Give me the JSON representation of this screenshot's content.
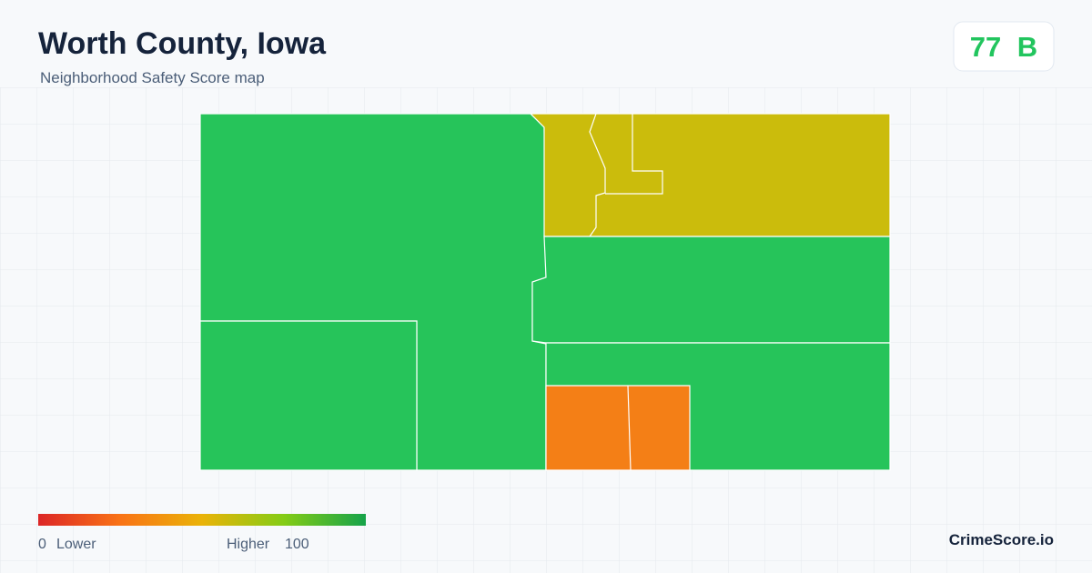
{
  "header": {
    "title": "Worth County, Iowa",
    "subtitle": "Neighborhood Safety Score map"
  },
  "score": {
    "value": 77,
    "grade": "B"
  },
  "legend": {
    "min": 0,
    "min_label": "Lower",
    "max_label": "Higher",
    "max": 100
  },
  "brand": "CrimeScore.io"
}
